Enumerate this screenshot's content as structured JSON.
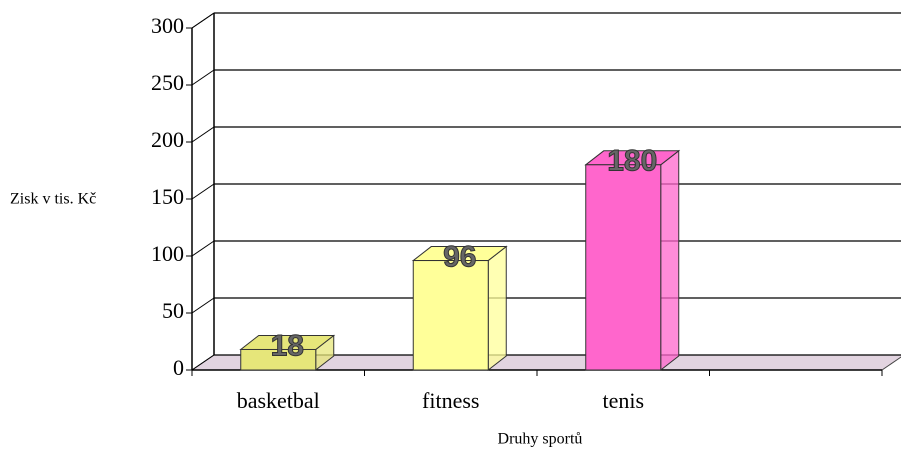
{
  "chart_data": {
    "type": "bar3d",
    "ylabel": "Zisk v tis. Kč",
    "xlabel": "Druhy sportů",
    "categories": [
      "basketbal",
      "fitness",
      "tenis",
      null
    ],
    "values": [
      18,
      96,
      180,
      null
    ],
    "colors": [
      "#e6e67a",
      "#ffff99",
      "#ff66cc",
      null
    ],
    "ylim": [
      0,
      300
    ],
    "yticks": [
      0,
      50,
      100,
      150,
      200,
      250,
      300
    ],
    "grid": true
  }
}
